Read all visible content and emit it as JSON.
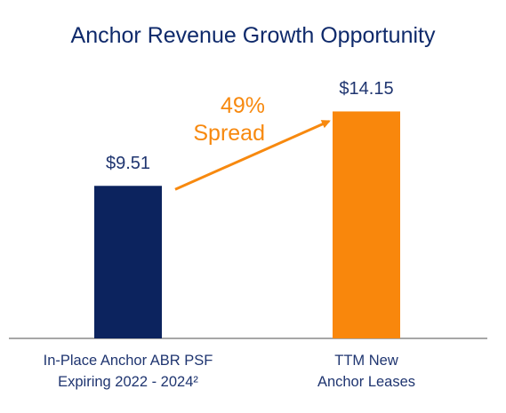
{
  "chart_data": {
    "type": "bar",
    "title": "Anchor Revenue Growth Opportunity",
    "categories": [
      [
        "In-Place Anchor ABR PSF",
        "Expiring 2022 - 2024²"
      ],
      [
        "TTM New",
        "Anchor Leases"
      ]
    ],
    "values": [
      9.51,
      14.15
    ],
    "value_labels": [
      "$9.51",
      "$14.15"
    ],
    "bar_colors": [
      "#0c235e",
      "#f9870c"
    ],
    "annotation": {
      "lines": [
        "49%",
        "Spread"
      ],
      "color": "#f7890f"
    },
    "axis_color": "#8a8a8a",
    "ylim": [
      0,
      17
    ],
    "grid": false,
    "legend": "none"
  }
}
